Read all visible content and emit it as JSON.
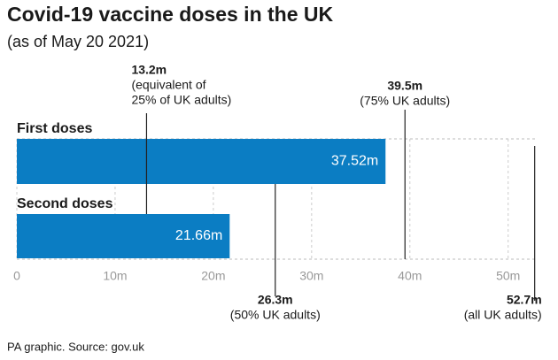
{
  "chart_data": {
    "type": "bar",
    "orientation": "horizontal",
    "title": "Covid-19 vaccine doses in the UK",
    "subtitle": "(as of May 20 2021)",
    "source": "PA graphic. Source: gov.uk",
    "categories": [
      "First doses",
      "Second doses"
    ],
    "values": [
      37.52,
      21.66
    ],
    "value_labels": [
      "37.52m",
      "21.66m"
    ],
    "color": "#0b7dc3",
    "xlim": [
      0,
      53
    ],
    "xticks": [
      0,
      {
        "value": 10,
        "label": "10m"
      },
      {
        "value": 20,
        "label": "20m"
      },
      {
        "value": 30,
        "label": "30m"
      },
      {
        "value": 40,
        "label": "40m"
      },
      {
        "value": 50,
        "label": "50m"
      }
    ],
    "grid": true,
    "annotations": [
      {
        "value": 13.2,
        "label": "13.2m",
        "note": [
          "(equivalent of",
          "25% of UK adults)"
        ]
      },
      {
        "value": 39.5,
        "label": "39.5m",
        "note": [
          "(75% UK adults)"
        ]
      },
      {
        "value": 26.3,
        "label": "26.3m",
        "note": [
          "(50% UK adults)"
        ]
      },
      {
        "value": 52.7,
        "label": "52.7m",
        "note": [
          "(all UK adults)"
        ]
      }
    ]
  }
}
